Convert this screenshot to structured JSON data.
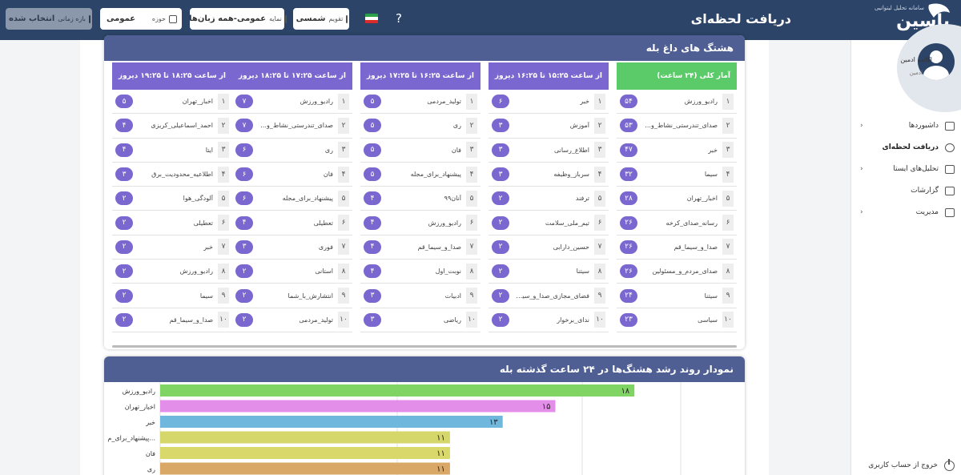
{
  "header": {
    "logo": "یاسین",
    "logo_subtitle": "سامانه تحلیل لیتوانیی",
    "page_title": "دریافت لحظه‌ای",
    "help": "?",
    "calendar": {
      "label": "تقویم",
      "value": "شمسی"
    },
    "display": {
      "label": "نمایه",
      "value": "عمومی-همه زبان‌ها"
    },
    "domain": {
      "label": "حوزه",
      "value": "عمومی"
    },
    "range": {
      "label": "بازه زمانی",
      "value": "انتخاب شده"
    }
  },
  "sidebar": {
    "user_name": "اکانت ادمین",
    "user_role": "ادمین",
    "items": [
      {
        "label": "داشبوردها"
      },
      {
        "label": "دریافت لحظه‌ای"
      },
      {
        "label": "تحلیل‌های ایستا"
      },
      {
        "label": "گزارشات"
      },
      {
        "label": "مدیریت"
      }
    ],
    "logout": "خروج از حساب کاربری"
  },
  "hashtags": {
    "title": "هشتگ های داغ بله",
    "columns": [
      {
        "header": "آمار کلی (۲۴ ساعت)",
        "rows": [
          [
            "۱",
            "رادیو_ورزش",
            "۵۴"
          ],
          [
            "۲",
            "صدای_تندرستی_نشاط_و...",
            "۵۳"
          ],
          [
            "۳",
            "خبر",
            "۴۷"
          ],
          [
            "۴",
            "سیما",
            "۳۲"
          ],
          [
            "۵",
            "اخبار_تهران",
            "۲۸"
          ],
          [
            "۶",
            "رسانه_صدای_کرخه",
            "۲۶"
          ],
          [
            "۷",
            "صدا_و_سیما_قم",
            "۲۶"
          ],
          [
            "۸",
            "صدای_مردم_و_مسئولین",
            "۲۶"
          ],
          [
            "۹",
            "سیتنا",
            "۲۴"
          ],
          [
            "۱۰",
            "سیاسی",
            "۲۳"
          ]
        ]
      },
      {
        "header": "از ساعت ۱۵:۲۵ تا ۱۶:۲۵ دیروز",
        "rows": [
          [
            "۱",
            "خبر",
            "۶"
          ],
          [
            "۲",
            "آموزش",
            "۳"
          ],
          [
            "۳",
            "اطلاع_رسانی",
            "۳"
          ],
          [
            "۴",
            "سرباز_وظیفه",
            "۳"
          ],
          [
            "۵",
            "ترفند",
            "۲"
          ],
          [
            "۶",
            "تیم_ملی_سلامت",
            "۲"
          ],
          [
            "۷",
            "حسین_دارابی",
            "۲"
          ],
          [
            "۸",
            "سیتنا",
            "۲"
          ],
          [
            "۹",
            "فضای_مجازی_صدا_و_سیم...",
            "۲"
          ],
          [
            "۱۰",
            "ندای_برخوار",
            "۲"
          ]
        ]
      },
      {
        "header": "از ساعت ۱۶:۲۵ تا ۱۷:۲۵ دیروز",
        "rows": [
          [
            "۱",
            "تولید_مردمی",
            "۵"
          ],
          [
            "۲",
            "ری",
            "۵"
          ],
          [
            "۳",
            "فان",
            "۵"
          ],
          [
            "۴",
            "پیشنهاد_برای_مجله",
            "۵"
          ],
          [
            "۵",
            "آنان۹۹",
            "۴"
          ],
          [
            "۶",
            "رادیو_ورزش",
            "۴"
          ],
          [
            "۷",
            "صدا_و_سیما_قم",
            "۴"
          ],
          [
            "۸",
            "نوبت_اول",
            "۴"
          ],
          [
            "۹",
            "ادبیات",
            "۳"
          ],
          [
            "۱۰",
            "ریاضی",
            "۳"
          ]
        ]
      },
      {
        "header": "از ساعت ۱۷:۲۵ تا ۱۸:۲۵ دیروز",
        "rows": [
          [
            "۱",
            "رادیو_ورزش",
            "۷"
          ],
          [
            "۲",
            "صدای_تندرستی_نشاط_و...",
            "۷"
          ],
          [
            "۳",
            "ری",
            "۶"
          ],
          [
            "۴",
            "فان",
            "۶"
          ],
          [
            "۵",
            "پیشنهاد_برای_مجله",
            "۶"
          ],
          [
            "۶",
            "تعطیلی",
            "۴"
          ],
          [
            "۷",
            "فوری",
            "۳"
          ],
          [
            "۸",
            "استانی",
            "۲"
          ],
          [
            "۹",
            "انتشارش_با_شما",
            "۲"
          ],
          [
            "۱۰",
            "تولید_مردمی",
            "۲"
          ]
        ]
      },
      {
        "header": "از ساعت ۱۸:۲۵ تا ۱۹:۲۵ دیروز",
        "rows": [
          [
            "۱",
            "اخبار_تهران",
            "۵"
          ],
          [
            "۲",
            "احمد_اسماعیلی_کریزی",
            "۴"
          ],
          [
            "۳",
            "ایتا",
            "۴"
          ],
          [
            "۴",
            "اطلاعیه_محدودیت_برق",
            "۳"
          ],
          [
            "۵",
            "آلودگی_هوا",
            "۲"
          ],
          [
            "۶",
            "تعطیلی",
            "۲"
          ],
          [
            "۷",
            "خبر",
            "۲"
          ],
          [
            "۸",
            "رادیو_ورزش",
            "۲"
          ],
          [
            "۹",
            "سیما",
            "۲"
          ],
          [
            "۱۰",
            "صدا_و_سیما_قم",
            "۲"
          ]
        ]
      }
    ]
  },
  "chart_data": {
    "type": "bar",
    "title": "نمودار روند رشد هشتگ‌ها در ۲۴ ساعت گذشته بله",
    "orientation": "horizontal",
    "categories": [
      "رادیو_ورزش",
      "اخبار_تهران",
      "خبر",
      "پیشنهاد_برای_م...",
      "فان",
      "ری"
    ],
    "values": [
      18,
      15,
      13,
      11,
      11,
      11
    ],
    "value_labels": [
      "۱۸",
      "۱۵",
      "۱۳",
      "۱۱",
      "۱۱",
      "۱۱"
    ],
    "colors": [
      "#7fd464",
      "#e38ee8",
      "#6fb7dd",
      "#d5d76a",
      "#d9d86a",
      "#d9a866"
    ]
  }
}
